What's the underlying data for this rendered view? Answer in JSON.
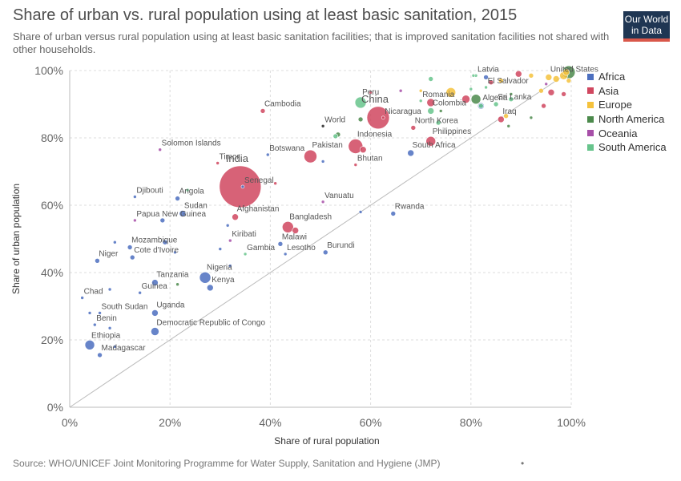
{
  "title": "Share of urban vs. rural population using at least basic sanitation, 2015",
  "subtitle": "Share of urban versus rural population using at least basic sanitation facilities; that is improved sanitation facilities not shared with other households.",
  "logo": {
    "line1": "Our World",
    "line2": "in Data"
  },
  "source": "Source: WHO/UNICEF Joint Monitoring Programme for Water Supply, Sanitation and Hygiene (JMP)",
  "footer_mark": "•",
  "chart_data": {
    "type": "scatter",
    "title": "Share of urban vs. rural population using at least basic sanitation, 2015",
    "xlabel": "Share of rural population",
    "ylabel": "Share of urban population",
    "xlim": [
      0,
      100
    ],
    "ylim": [
      0,
      100
    ],
    "xticks": [
      "0%",
      "20%",
      "40%",
      "60%",
      "80%",
      "100%"
    ],
    "yticks": [
      "0%",
      "20%",
      "40%",
      "60%",
      "80%",
      "100%"
    ],
    "grid": true,
    "diagonal_line": true,
    "legend_position": "right",
    "series": [
      {
        "name": "Africa",
        "color": "#4c6fbf",
        "points": [
          {
            "label": "Djibouti",
            "x": 13,
            "y": 62.5,
            "size": 2
          },
          {
            "label": "Angola",
            "x": 21.5,
            "y": 62,
            "size": 3
          },
          {
            "label": "Sudan",
            "x": 22.5,
            "y": 57.5,
            "size": 4
          },
          {
            "label": "Senegal",
            "x": 34.5,
            "y": 65.5,
            "size": 2
          },
          {
            "label": "Niger",
            "x": 5.5,
            "y": 43.5,
            "size": 3
          },
          {
            "label": "Mozambique",
            "x": 12,
            "y": 47.5,
            "size": 3
          },
          {
            "label": "Cote d'Ivoire",
            "x": 12.5,
            "y": 44.5,
            "size": 3
          },
          {
            "label": "Chad",
            "x": 2.5,
            "y": 32.5,
            "size": 2
          },
          {
            "label": "South Sudan",
            "x": 6,
            "y": 28,
            "size": 2
          },
          {
            "label": "Benin",
            "x": 5,
            "y": 24.5,
            "size": 2
          },
          {
            "label": "Ethiopia",
            "x": 4,
            "y": 18.5,
            "size": 6
          },
          {
            "label": "Madagascar",
            "x": 6,
            "y": 15.5,
            "size": 3
          },
          {
            "label": "Guinea",
            "x": 14,
            "y": 34,
            "size": 2
          },
          {
            "label": "Tanzania",
            "x": 17,
            "y": 37,
            "size": 4
          },
          {
            "label": "Uganda",
            "x": 17,
            "y": 28,
            "size": 4
          },
          {
            "label": "Democratic Republic of Congo",
            "x": 17,
            "y": 22.5,
            "size": 5
          },
          {
            "label": "Nigeria",
            "x": 27,
            "y": 38.5,
            "size": 7
          },
          {
            "label": "Kenya",
            "x": 28,
            "y": 35.5,
            "size": 4
          },
          {
            "label": "Malawi",
            "x": 42,
            "y": 48.5,
            "size": 3
          },
          {
            "label": "Lesotho",
            "x": 43,
            "y": 45.5,
            "size": 2
          },
          {
            "label": "Burundi",
            "x": 51,
            "y": 46,
            "size": 3
          },
          {
            "label": "Botswana",
            "x": 39.5,
            "y": 75,
            "size": 2
          },
          {
            "label": "Rwanda",
            "x": 64.5,
            "y": 57.5,
            "size": 3
          },
          {
            "label": "South Africa",
            "x": 68,
            "y": 75.5,
            "size": 4
          },
          {
            "label": "Algeria",
            "x": 82,
            "y": 89.5,
            "size": 4
          },
          {
            "label": "",
            "x": 9,
            "y": 49,
            "size": 2
          },
          {
            "label": "",
            "x": 18.5,
            "y": 55.5,
            "size": 3
          },
          {
            "label": "",
            "x": 21,
            "y": 46,
            "size": 2
          },
          {
            "label": "",
            "x": 19,
            "y": 49,
            "size": 3
          },
          {
            "label": "",
            "x": 30,
            "y": 47,
            "size": 2
          },
          {
            "label": "",
            "x": 31.5,
            "y": 54,
            "size": 2
          },
          {
            "label": "",
            "x": 8,
            "y": 35,
            "size": 2
          },
          {
            "label": "",
            "x": 4,
            "y": 28,
            "size": 2
          },
          {
            "label": "",
            "x": 8,
            "y": 23.5,
            "size": 2
          },
          {
            "label": "",
            "x": 9,
            "y": 18,
            "size": 2
          },
          {
            "label": "",
            "x": 32,
            "y": 42,
            "size": 2
          },
          {
            "label": "",
            "x": 50.5,
            "y": 73,
            "size": 2
          },
          {
            "label": "",
            "x": 58,
            "y": 58,
            "size": 2
          },
          {
            "label": "",
            "x": 83,
            "y": 98,
            "size": 3
          }
        ]
      },
      {
        "name": "Asia",
        "color": "#d0475f",
        "points": [
          {
            "label": "China",
            "x": 61.5,
            "y": 86,
            "size": 14
          },
          {
            "label": "India",
            "x": 34,
            "y": 65.5,
            "size": 26
          },
          {
            "label": "Cambodia",
            "x": 38.5,
            "y": 88,
            "size": 3
          },
          {
            "label": "Timor",
            "x": 29.5,
            "y": 72.5,
            "size": 2
          },
          {
            "label": "Pakistan",
            "x": 48,
            "y": 74.5,
            "size": 8
          },
          {
            "label": "Indonesia",
            "x": 57,
            "y": 77.5,
            "size": 9
          },
          {
            "label": "Bhutan",
            "x": 57,
            "y": 72,
            "size": 2
          },
          {
            "label": "Afghanistan",
            "x": 33,
            "y": 56.5,
            "size": 4
          },
          {
            "label": "Bangladesh",
            "x": 43.5,
            "y": 53.5,
            "size": 7
          },
          {
            "label": "Nicaragua",
            "x": 62.5,
            "y": 86,
            "size": 2
          },
          {
            "label": "North Korea",
            "x": 68.5,
            "y": 83,
            "size": 3
          },
          {
            "label": "Philippines",
            "x": 72,
            "y": 79,
            "size": 6
          },
          {
            "label": "Iraq",
            "x": 86,
            "y": 85.5,
            "size": 4
          },
          {
            "label": "",
            "x": 58.5,
            "y": 76.5,
            "size": 4
          },
          {
            "label": "",
            "x": 45,
            "y": 52.5,
            "size": 4
          },
          {
            "label": "",
            "x": 41,
            "y": 66.5,
            "size": 2
          },
          {
            "label": "",
            "x": 72,
            "y": 90.5,
            "size": 5
          },
          {
            "label": "",
            "x": 79,
            "y": 91.5,
            "size": 5
          },
          {
            "label": "",
            "x": 89.5,
            "y": 99,
            "size": 4
          },
          {
            "label": "",
            "x": 94.5,
            "y": 89.5,
            "size": 3
          },
          {
            "label": "",
            "x": 96,
            "y": 93.5,
            "size": 4
          },
          {
            "label": "",
            "x": 98.5,
            "y": 93,
            "size": 3
          },
          {
            "label": "",
            "x": 84,
            "y": 96.5,
            "size": 3
          },
          {
            "label": "",
            "x": 60,
            "y": 93.5,
            "size": 2
          }
        ]
      },
      {
        "name": "Europe",
        "color": "#f5c23c",
        "points": [
          {
            "label": "United States",
            "x": 95.5,
            "y": 98,
            "size": 4
          },
          {
            "label": "",
            "x": 76,
            "y": 93.5,
            "size": 6
          },
          {
            "label": "",
            "x": 86,
            "y": 97,
            "size": 3
          },
          {
            "label": "",
            "x": 87,
            "y": 86.5,
            "size": 3
          },
          {
            "label": "",
            "x": 92,
            "y": 98.5,
            "size": 3
          },
          {
            "label": "",
            "x": 97,
            "y": 97.5,
            "size": 4
          },
          {
            "label": "",
            "x": 98.5,
            "y": 98.5,
            "size": 5
          },
          {
            "label": "",
            "x": 99,
            "y": 99.5,
            "size": 4
          },
          {
            "label": "",
            "x": 99.5,
            "y": 97,
            "size": 3
          },
          {
            "label": "",
            "x": 94,
            "y": 94,
            "size": 3
          },
          {
            "label": "",
            "x": 70,
            "y": 94,
            "size": 2
          }
        ]
      },
      {
        "name": "North America",
        "color": "#4c8a4c",
        "points": [
          {
            "label": "",
            "x": 99.5,
            "y": 99.5,
            "size": 8
          },
          {
            "label": "",
            "x": 81,
            "y": 91.5,
            "size": 6
          },
          {
            "label": "",
            "x": 58,
            "y": 85.5,
            "size": 3
          },
          {
            "label": "",
            "x": 53.5,
            "y": 81,
            "size": 3
          },
          {
            "label": "",
            "x": 87.5,
            "y": 83.5,
            "size": 2
          },
          {
            "label": "",
            "x": 92,
            "y": 86,
            "size": 2
          },
          {
            "label": "",
            "x": 21.5,
            "y": 36.5,
            "size": 2
          },
          {
            "label": "",
            "x": 88,
            "y": 93,
            "size": 2
          },
          {
            "label": "",
            "x": 74,
            "y": 88,
            "size": 2
          },
          {
            "label": "World",
            "x": 50.5,
            "y": 83.5,
            "size": 2,
            "color": "#222222"
          }
        ]
      },
      {
        "name": "Oceania",
        "color": "#a74fa8",
        "points": [
          {
            "label": "Solomon Islands",
            "x": 18,
            "y": 76.5,
            "size": 2
          },
          {
            "label": "Papua New Guinea",
            "x": 13,
            "y": 55.5,
            "size": 2
          },
          {
            "label": "Kiribati",
            "x": 32,
            "y": 49.5,
            "size": 2
          },
          {
            "label": "Vanuatu",
            "x": 50.5,
            "y": 61,
            "size": 2
          },
          {
            "label": "",
            "x": 66,
            "y": 94,
            "size": 2
          },
          {
            "label": "",
            "x": 95,
            "y": 96,
            "size": 2
          }
        ]
      },
      {
        "name": "South America",
        "color": "#67c48c",
        "points": [
          {
            "label": "Peru",
            "x": 58,
            "y": 90.5,
            "size": 7
          },
          {
            "label": "Colombia",
            "x": 72,
            "y": 88,
            "size": 4
          },
          {
            "label": "Romania",
            "x": 70,
            "y": 91,
            "size": 2
          },
          {
            "label": "Latvia",
            "x": 81,
            "y": 98.5,
            "size": 2
          },
          {
            "label": "El Salvador",
            "x": 83,
            "y": 95,
            "size": 2
          },
          {
            "label": "Sri Lanka",
            "x": 85,
            "y": 90,
            "size": 3
          },
          {
            "label": "Gambia",
            "x": 35,
            "y": 45.5,
            "size": 2
          },
          {
            "label": "",
            "x": 72,
            "y": 97.5,
            "size": 3
          },
          {
            "label": "",
            "x": 73.5,
            "y": 84.5,
            "size": 3
          },
          {
            "label": "",
            "x": 80,
            "y": 94.5,
            "size": 2
          },
          {
            "label": "",
            "x": 82,
            "y": 89.5,
            "size": 3
          },
          {
            "label": "",
            "x": 88,
            "y": 91.5,
            "size": 3
          },
          {
            "label": "",
            "x": 23.5,
            "y": 64.5,
            "size": 2
          },
          {
            "label": "",
            "x": 53,
            "y": 80.5,
            "size": 3
          },
          {
            "label": "",
            "x": 80.5,
            "y": 98.5,
            "size": 2
          }
        ]
      }
    ],
    "highlight_labels": [
      "China",
      "India"
    ]
  }
}
